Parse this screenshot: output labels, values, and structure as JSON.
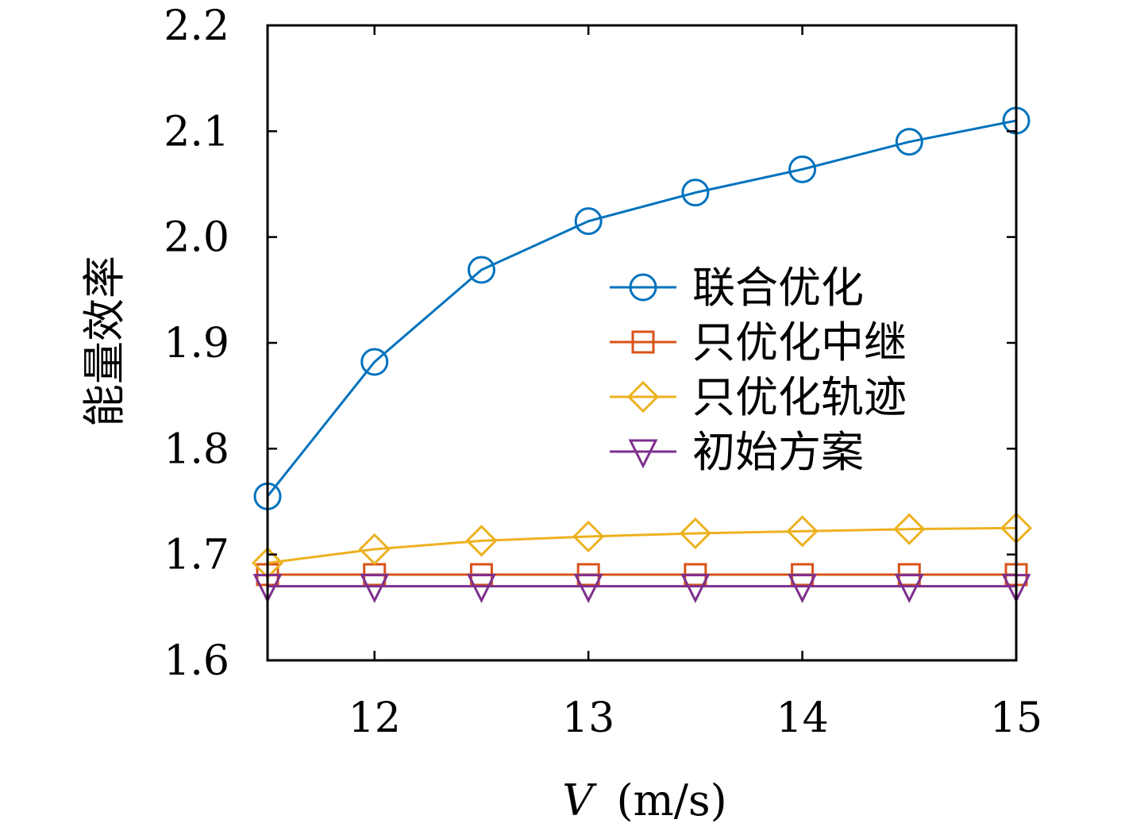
{
  "chart_data": {
    "type": "line",
    "xlabel": "V (m/s)",
    "xlabel_var": "V",
    "xlabel_unit": "(m/s)",
    "ylabel": "能量效率",
    "xlim": [
      11.5,
      15
    ],
    "ylim": [
      1.6,
      2.2
    ],
    "xticks": [
      "12",
      "13",
      "14",
      "15"
    ],
    "xtick_values": [
      12,
      13,
      14,
      15
    ],
    "yticks": [
      "1.6",
      "1.7",
      "1.8",
      "1.9",
      "2.0",
      "2.1",
      "2.2"
    ],
    "ytick_values": [
      1.6,
      1.7,
      1.8,
      1.9,
      2.0,
      2.1,
      2.2
    ],
    "grid": false,
    "legend_position": "center-right",
    "x": [
      11.5,
      12,
      12.5,
      13,
      13.5,
      14,
      14.5,
      15
    ],
    "series": [
      {
        "name": "联合优化",
        "color": "#0072BD",
        "marker": "circle",
        "values": [
          1.755,
          1.882,
          1.969,
          2.015,
          2.042,
          2.064,
          2.09,
          2.11
        ]
      },
      {
        "name": "只优化中继",
        "color": "#D95319",
        "marker": "square",
        "values": [
          1.681,
          1.681,
          1.681,
          1.681,
          1.681,
          1.681,
          1.681,
          1.681
        ]
      },
      {
        "name": "只优化轨迹",
        "color": "#EDB120",
        "marker": "diamond",
        "values": [
          1.692,
          1.705,
          1.713,
          1.717,
          1.72,
          1.722,
          1.724,
          1.725
        ]
      },
      {
        "name": "初始方案",
        "color": "#7E2F8E",
        "marker": "triangle-down",
        "values": [
          1.67,
          1.67,
          1.67,
          1.67,
          1.67,
          1.67,
          1.67,
          1.67
        ]
      }
    ]
  }
}
